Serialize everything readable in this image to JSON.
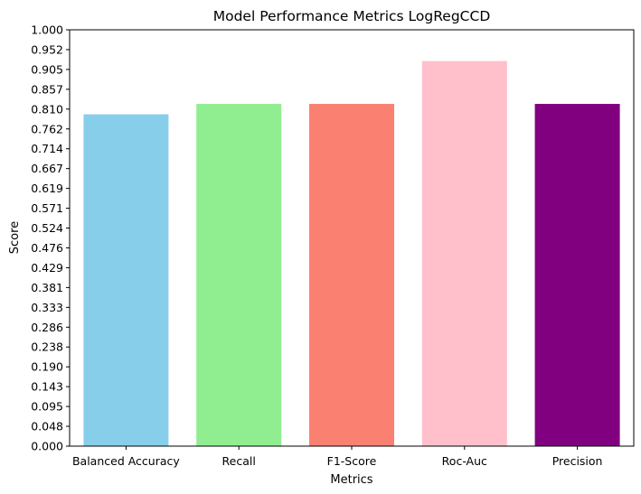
{
  "chart_data": {
    "type": "bar",
    "title": "Model Performance Metrics LogRegCCD",
    "xlabel": "Metrics",
    "ylabel": "Score",
    "categories": [
      "Balanced Accuracy",
      "Recall",
      "F1-Score",
      "Roc-Auc",
      "Precision"
    ],
    "values": [
      0.797,
      0.822,
      0.822,
      0.925,
      0.822
    ],
    "colors": [
      "#87ceeb",
      "#90ee90",
      "#fa8072",
      "#ffc0cb",
      "#800080"
    ],
    "ylim": [
      0,
      1.0
    ],
    "yticks": [
      "0.000",
      "0.048",
      "0.095",
      "0.143",
      "0.190",
      "0.238",
      "0.286",
      "0.333",
      "0.381",
      "0.429",
      "0.476",
      "0.524",
      "0.571",
      "0.619",
      "0.667",
      "0.714",
      "0.762",
      "0.810",
      "0.857",
      "0.905",
      "0.952",
      "1.000"
    ],
    "grid": false,
    "legend": "none"
  }
}
